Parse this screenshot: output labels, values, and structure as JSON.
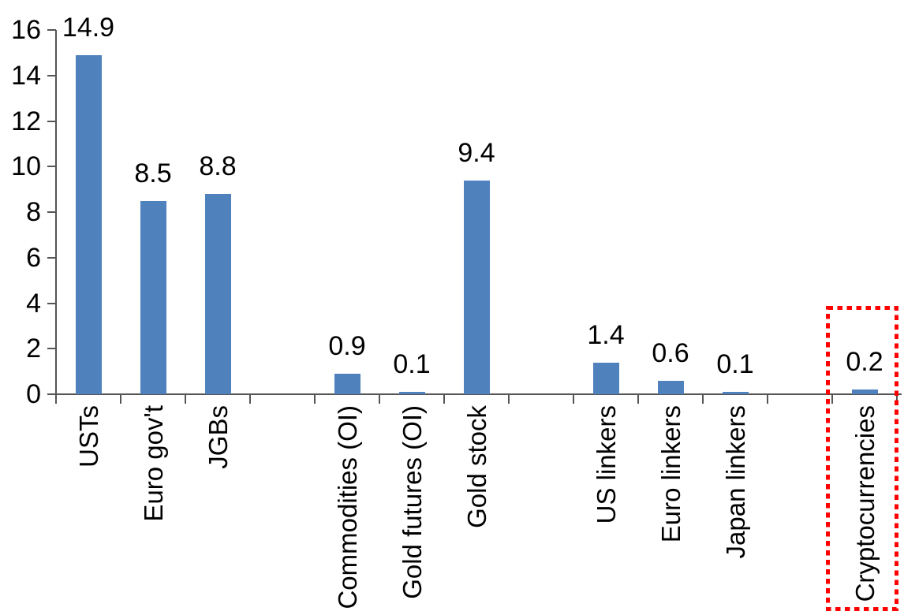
{
  "chart_data": {
    "type": "bar",
    "title": "",
    "xlabel": "",
    "ylabel": "",
    "categories": [
      "USTs",
      "Euro gov't",
      "JGBs",
      "Commodities (OI)",
      "Gold futures (OI)",
      "Gold stock",
      "US linkers",
      "Euro linkers",
      "Japan linkers",
      "Cryptocurrencies"
    ],
    "values": [
      14.9,
      8.5,
      8.8,
      0.9,
      0.1,
      9.4,
      1.4,
      0.6,
      0.1,
      0.2
    ],
    "value_labels": [
      "14.9",
      "8.5",
      "8.8",
      "0.9",
      "0.1",
      "9.4",
      "1.4",
      "0.6",
      "0.1",
      "0.2"
    ],
    "slots": [
      0,
      1,
      2,
      4,
      5,
      6,
      8,
      9,
      10,
      12
    ],
    "total_slots": 13,
    "ylim": [
      0,
      16
    ],
    "yticks": [
      0,
      2,
      4,
      6,
      8,
      10,
      12,
      14,
      16
    ],
    "grid": false,
    "legend": false,
    "bar_color": "#4F81BD",
    "axis_color": "#555555",
    "text_color": "#000000",
    "highlight": {
      "category": "Cryptocurrencies",
      "box_color": "#FF0000",
      "style": "dotted-box"
    }
  }
}
